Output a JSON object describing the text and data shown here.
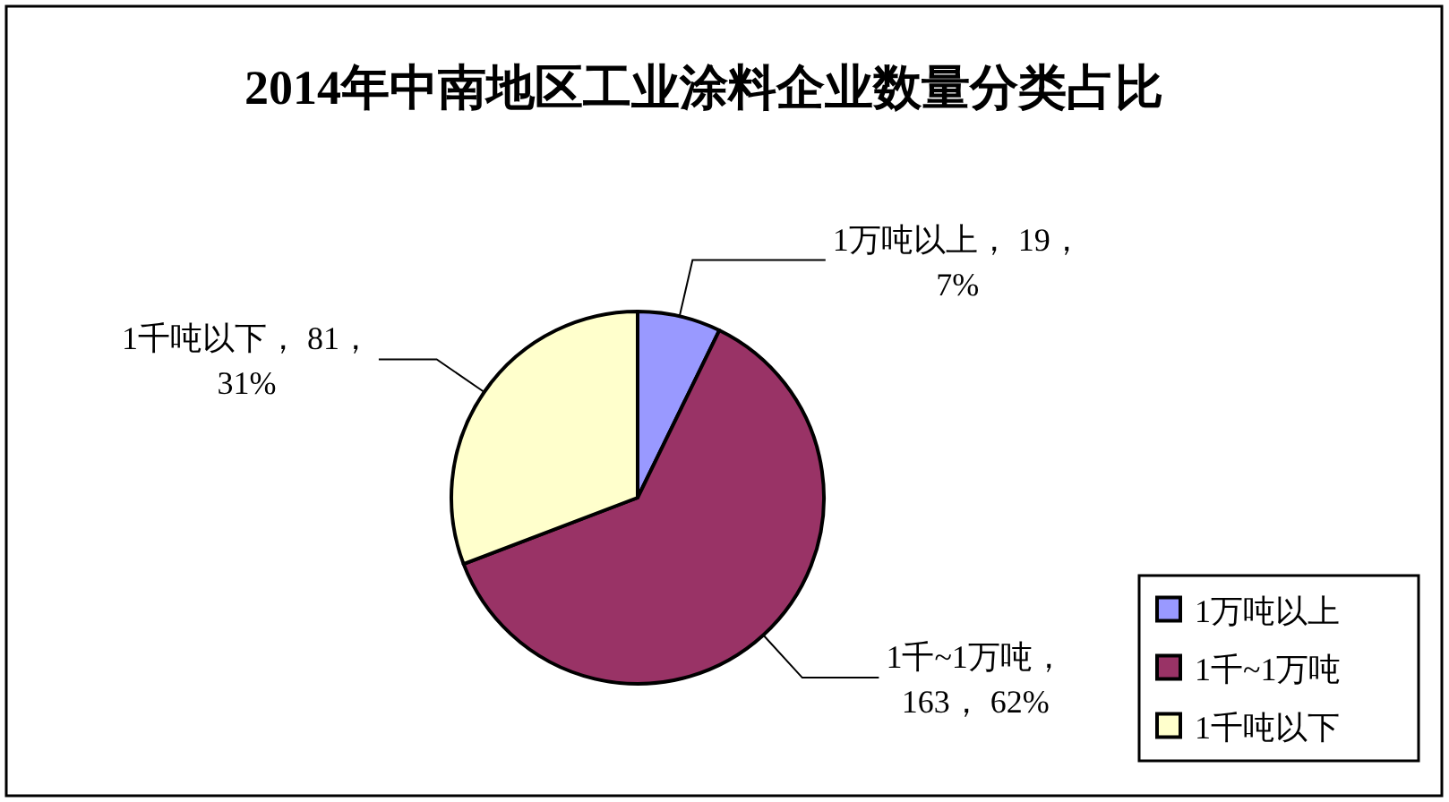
{
  "chart_data": {
    "type": "pie",
    "title": "2014年中南地区工业涂料企业数量分类占比",
    "categories": [
      "1万吨以上",
      "1千~1万吨",
      "1千吨以下"
    ],
    "values": [
      19,
      163,
      81
    ],
    "colors": [
      "#9999ff",
      "#993366",
      "#ffffcc"
    ],
    "value_labels": [
      "1万吨以上， 19， 7%",
      "1千~1万吨， 163， 62%",
      "1千吨以下， 81， 31%"
    ],
    "legend": "bottom right"
  }
}
